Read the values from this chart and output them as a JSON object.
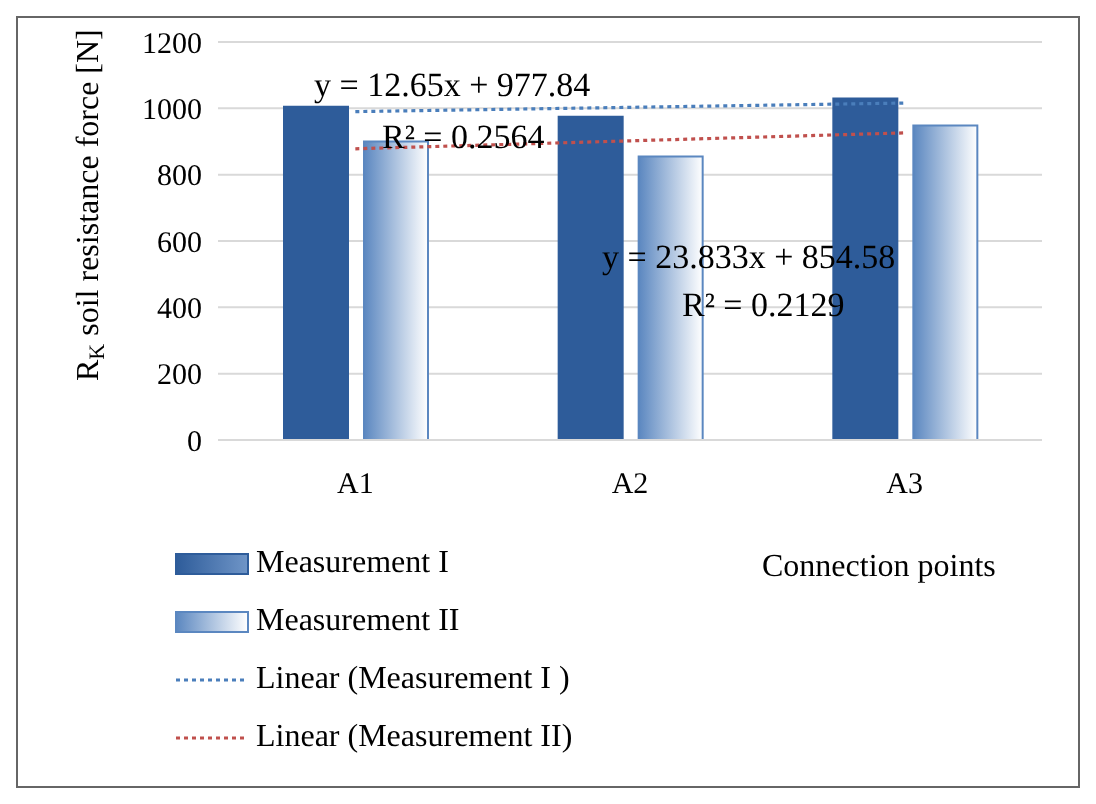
{
  "chart_data": {
    "type": "bar",
    "xlabel": "Connection points",
    "ylabel": "R$_{K}$ soil resistance force [N]",
    "categories": [
      "A1",
      "A2",
      "A3"
    ],
    "series": [
      {
        "name": "Measurement I",
        "color": "#2e5c9a",
        "values": [
          1005,
          975,
          1030
        ]
      },
      {
        "name": "Measurement II",
        "color": "#5b87c0",
        "values": [
          900,
          855,
          948
        ]
      },
      {
        "name": "Linear (Measurement I )",
        "type": "line",
        "color": "#4a7ebb",
        "line_style": "dotted",
        "values": [
          990,
          1003,
          1016
        ]
      },
      {
        "name": "Linear (Measurement II)",
        "type": "line",
        "color": "#c0504d",
        "line_style": "dotted",
        "values": [
          878,
          902,
          926
        ]
      }
    ],
    "ylim": [
      0,
      1200
    ],
    "yticks": [
      0,
      200,
      400,
      600,
      800,
      1000,
      1200
    ],
    "grid": "y",
    "legend": "bottom left",
    "marker": "none",
    "annotations": [
      "y = 12.65x + 977.84",
      "R² = 0.2564",
      "y = 23.833x + 854.58",
      "R² = 0.2129"
    ]
  }
}
